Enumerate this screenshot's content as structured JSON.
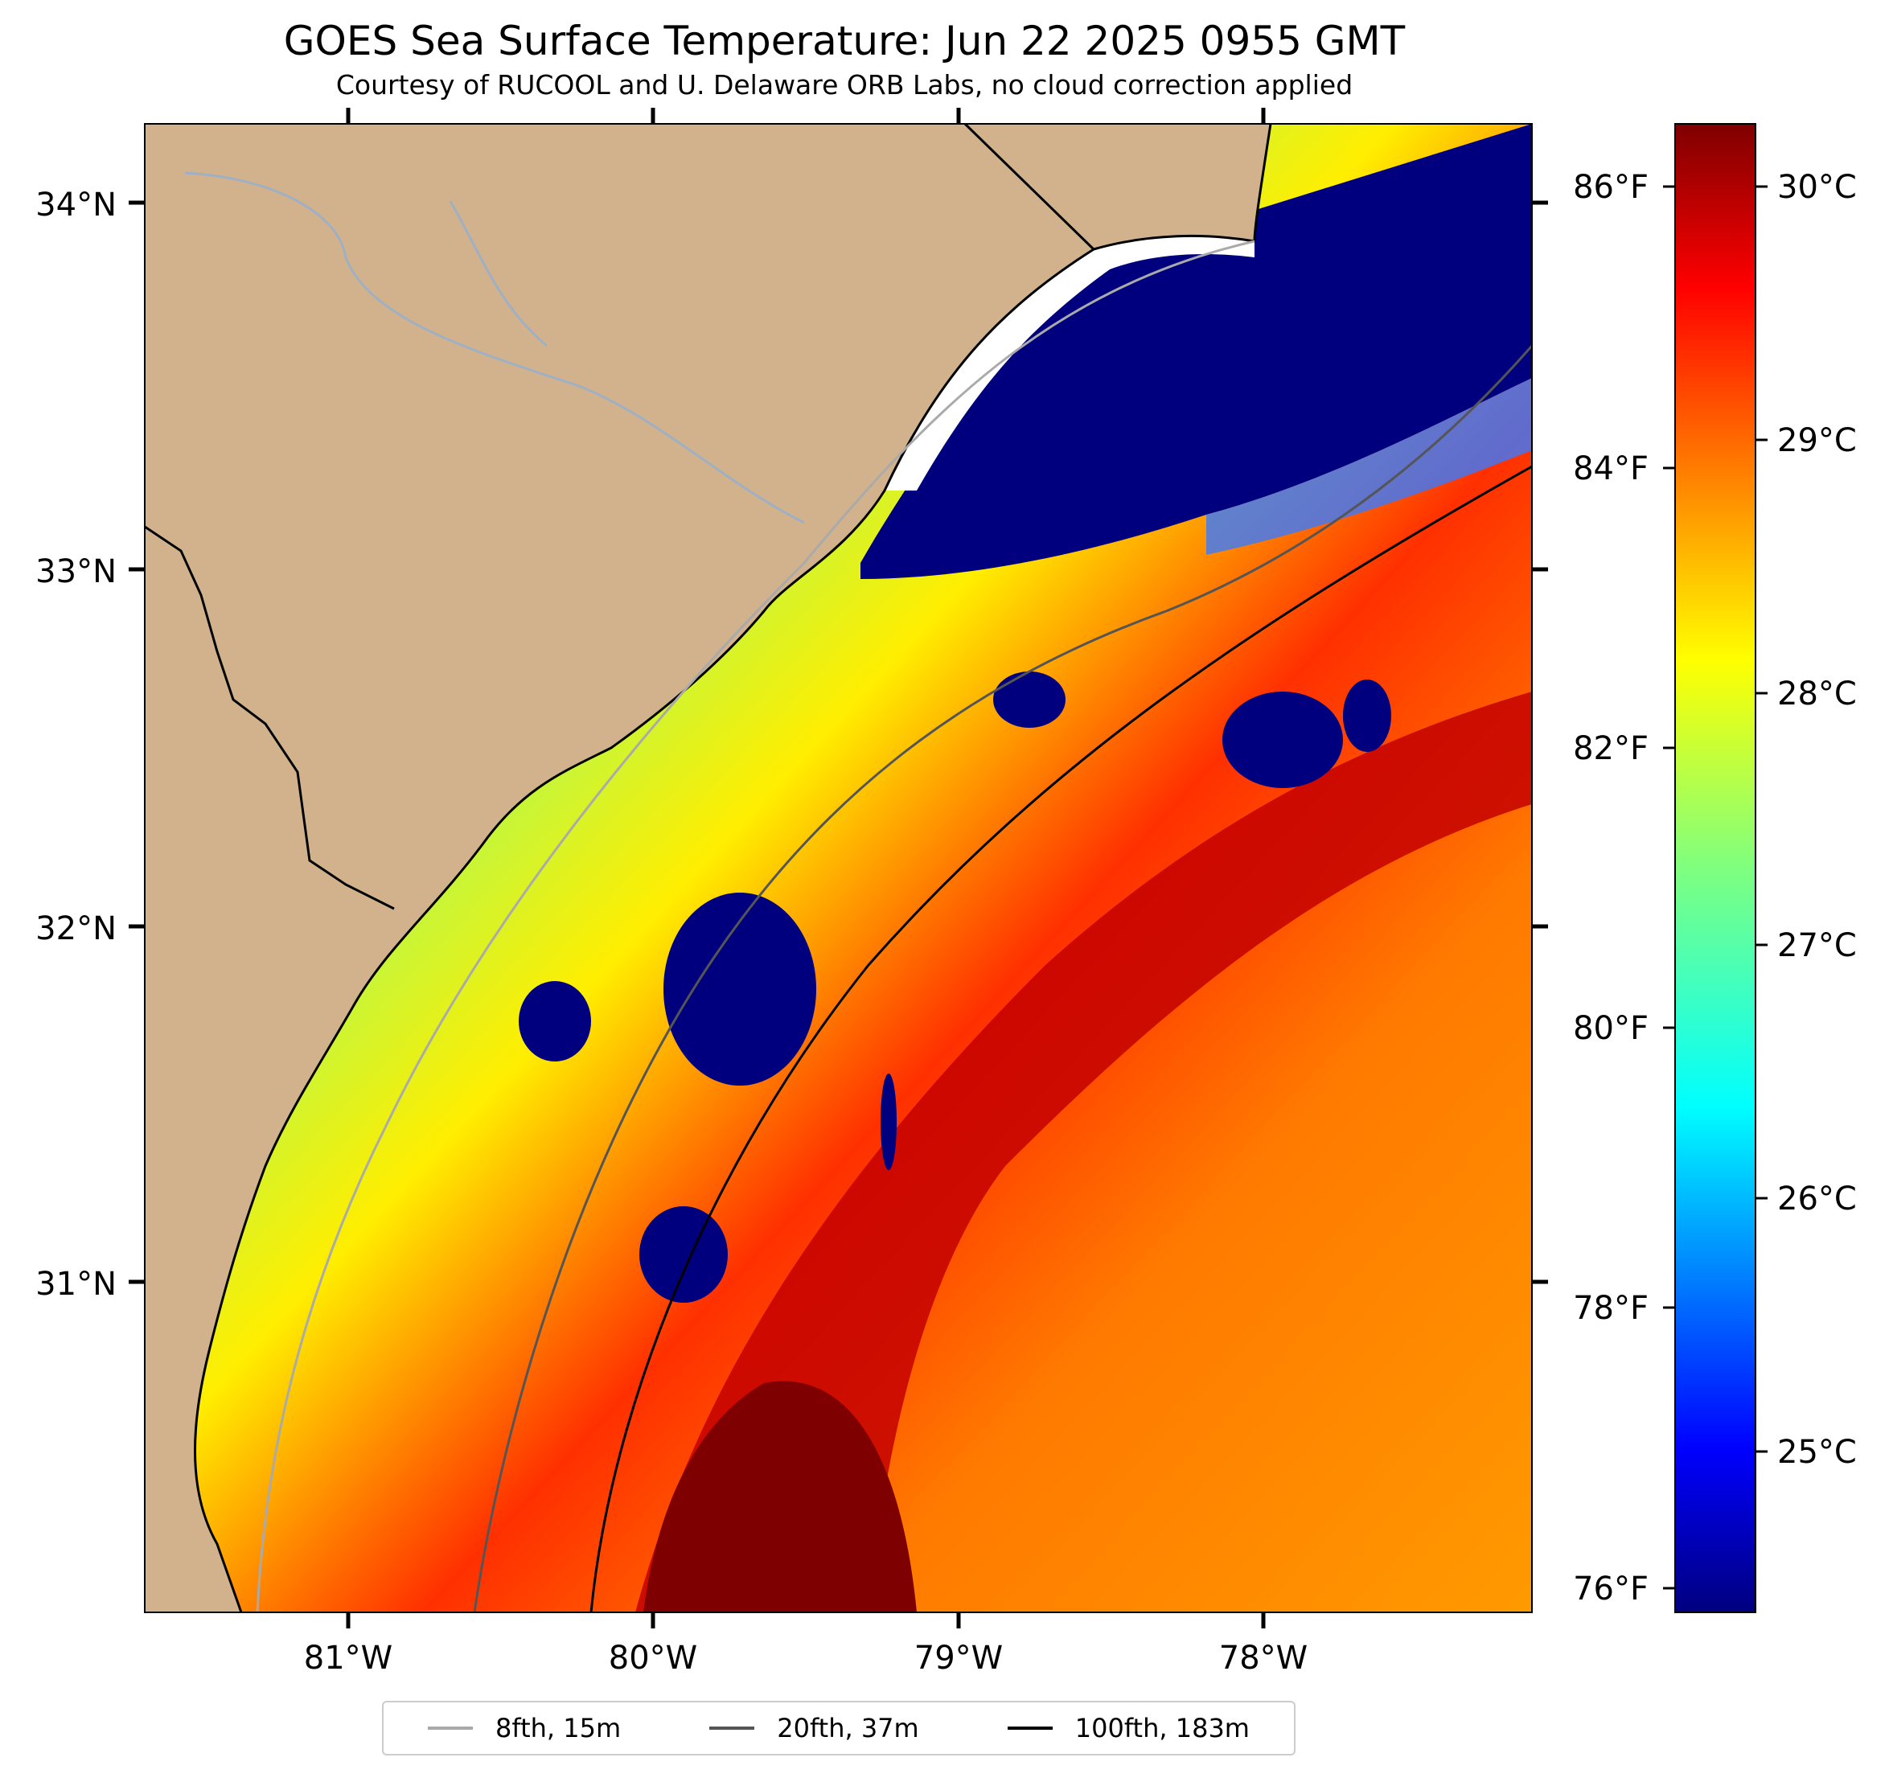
{
  "title": "GOES Sea Surface Temperature: Jun 22 2025 0955 GMT",
  "subtitle": "Courtesy of RUCOOL and U. Delaware ORB Labs, no cloud correction applied",
  "map": {
    "lat_labels": [
      "34°N",
      "33°N",
      "32°N",
      "31°N"
    ],
    "lon_labels": [
      "81°W",
      "80°W",
      "79°W",
      "78°W"
    ],
    "colors": {
      "land": "#d1b28c",
      "nodata": "#ffffff",
      "cloud": "#00007f"
    }
  },
  "colorbar": {
    "celsius_labels": [
      "30°C",
      "29°C",
      "28°C",
      "27°C",
      "26°C",
      "25°C"
    ],
    "fahrenheit_labels": [
      "86°F",
      "84°F",
      "82°F",
      "80°F",
      "78°F",
      "76°F"
    ],
    "colormap": "jet"
  },
  "legend": {
    "items": [
      {
        "label": "8fth, 15m",
        "color": "#aaaaaa"
      },
      {
        "label": "20fth, 37m",
        "color": "#555555"
      },
      {
        "label": "100fth, 183m",
        "color": "#000000"
      }
    ]
  }
}
